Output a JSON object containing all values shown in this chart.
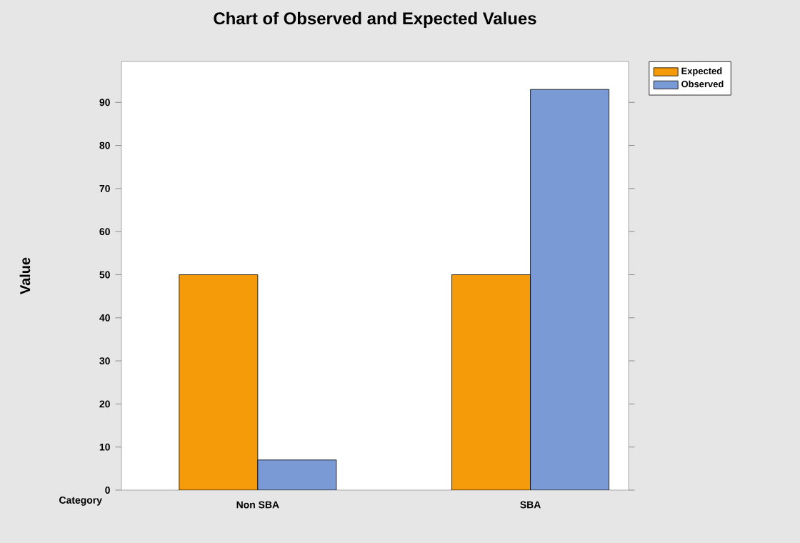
{
  "chart_data": {
    "type": "bar",
    "title": "Chart of Observed and Expected Values",
    "xlabel": "Category",
    "ylabel": "Value",
    "categories": [
      "Non SBA",
      "SBA"
    ],
    "series": [
      {
        "name": "Expected",
        "color": "#f59b0a",
        "values": [
          50,
          50
        ]
      },
      {
        "name": "Observed",
        "color": "#7a9ad6",
        "values": [
          7,
          93
        ]
      }
    ],
    "ylim": [
      0,
      99.5
    ],
    "yticks": [
      0,
      10,
      20,
      30,
      40,
      50,
      60,
      70,
      80,
      90
    ],
    "grid": false,
    "legend": "top right"
  }
}
